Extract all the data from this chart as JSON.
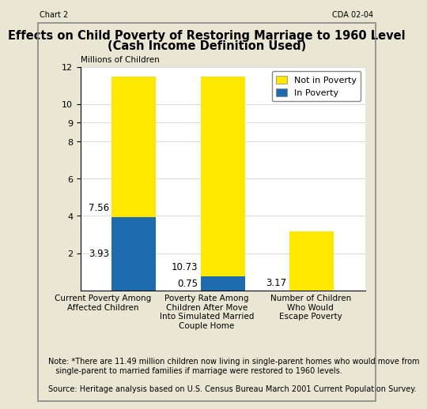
{
  "title_line1": "Effects on Child Poverty of Restoring Marriage to 1960 Level",
  "title_line2": "(Cash Income Definition Used)",
  "ylabel": "Millions of Children",
  "categories": [
    "Current Poverty Among\nAffected Children",
    "Poverty Rate Among\nChildren After Move\nInto Simulated Married\nCouple Home",
    "Number of Children\nWho Would\nEscape Poverty"
  ],
  "blue_values": [
    3.93,
    0.75,
    0.0
  ],
  "yellow_values": [
    7.56,
    10.73,
    3.17
  ],
  "blue_labels": [
    "3.93",
    "0.75",
    ""
  ],
  "yellow_labels": [
    "7.56",
    "10.73",
    "3.17"
  ],
  "blue_color": "#1F6BB0",
  "yellow_color": "#FFE800",
  "ylim": [
    0,
    12
  ],
  "yticks": [
    2,
    4,
    6,
    8,
    9,
    10,
    12
  ],
  "legend_not_in_poverty": "Not in Poverty",
  "legend_in_poverty": "In Poverty",
  "header_left": "Chart 2",
  "header_right": "CDA 02-04",
  "note_line1": "Note: *There are 11.49 million children now living in single-parent homes who would move from",
  "note_line2": "   single-parent to married families if marriage were restored to 1960 levels.",
  "source": "Source: Heritage analysis based on U.S. Census Bureau March 2001 Current Population Survey.",
  "outer_bg": "#EAE6D4",
  "inner_bg": "#FFFFFF",
  "header_bg": "#C8C8CC",
  "bar_width": 0.5,
  "label_fontsize": 8.5,
  "tick_fontsize": 8.0,
  "ylabel_fontsize": 7.5,
  "legend_fontsize": 8.0,
  "note_fontsize": 7.0,
  "title_fontsize": 10.5
}
